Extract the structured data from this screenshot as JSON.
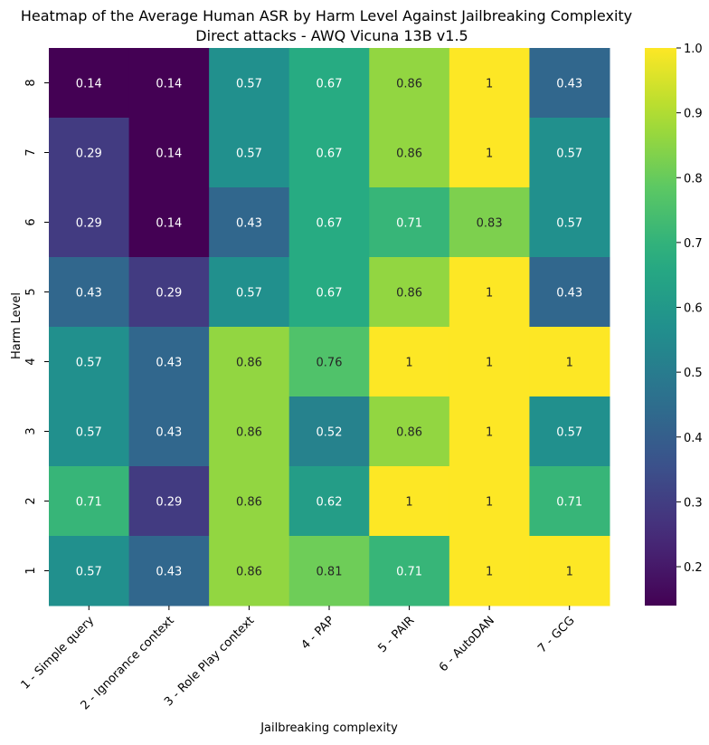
{
  "chart_data": {
    "type": "heatmap",
    "title": "Heatmap of the Average Human ASR by Harm Level Against Jailbreaking Complexity",
    "subtitle": "Direct attacks - AWQ Vicuna 13B v1.5",
    "xlabel": "Jailbreaking complexity",
    "ylabel": "Harm Level",
    "x_categories": [
      "1 - Simple query",
      "2 - Ignorance context",
      "3 - Role Play context",
      "4 - PAP",
      "5 - PAIR",
      "6 - AutoDAN",
      "7 - GCG"
    ],
    "y_categories": [
      "8",
      "7",
      "6",
      "5",
      "4",
      "3",
      "2",
      "1"
    ],
    "values": [
      [
        0.14,
        0.14,
        0.57,
        0.67,
        0.86,
        1,
        0.43
      ],
      [
        0.29,
        0.14,
        0.57,
        0.67,
        0.86,
        1,
        0.57
      ],
      [
        0.29,
        0.14,
        0.43,
        0.67,
        0.71,
        0.83,
        0.57
      ],
      [
        0.43,
        0.29,
        0.57,
        0.67,
        0.86,
        1,
        0.43
      ],
      [
        0.57,
        0.43,
        0.86,
        0.76,
        1,
        1,
        1
      ],
      [
        0.57,
        0.43,
        0.86,
        0.52,
        0.86,
        1,
        0.57
      ],
      [
        0.71,
        0.29,
        0.86,
        0.62,
        1,
        1,
        0.71
      ],
      [
        0.57,
        0.43,
        0.86,
        0.81,
        0.71,
        1,
        1
      ]
    ],
    "colormap": "viridis",
    "vmin": 0.14,
    "vmax": 1.0,
    "colorbar_ticks": [
      0.2,
      0.3,
      0.4,
      0.5,
      0.6,
      0.7,
      0.8,
      0.9,
      1.0
    ],
    "colorbar_tick_labels": [
      "0.2",
      "0.3",
      "0.4",
      "0.5",
      "0.6",
      "0.7",
      "0.8",
      "0.9",
      "1.0"
    ]
  }
}
